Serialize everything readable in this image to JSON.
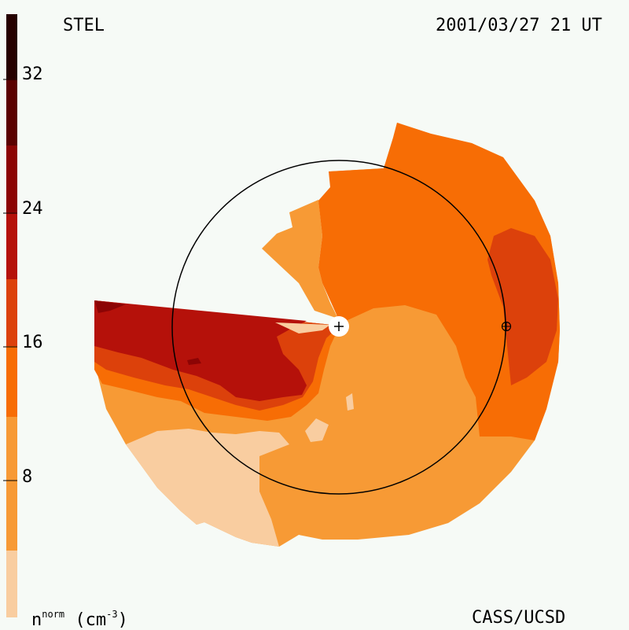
{
  "title": "STEL",
  "timestamp": "2001/03/27 21 UT",
  "credit": "CASS/UCSD",
  "unit": {
    "symbol": "n",
    "superscript": "norm",
    "units_prefix": "(cm",
    "units_exp": "-3",
    "units_suffix": ")"
  },
  "colorbar": {
    "ticks": [
      "32",
      "24",
      "16",
      "8"
    ],
    "colors": [
      "#f9cda0",
      "#f79a35",
      "#f76d05",
      "#dc410b",
      "#b5110a",
      "#8c0404",
      "#5b0000",
      "#260000"
    ]
  },
  "palette": {
    "pale": "#f9cda0",
    "light": "#f79a35",
    "orange": "#f76d05",
    "dark_orange": "#dc410b",
    "red": "#b5110a",
    "dark_red": "#8c0404",
    "background": "#f6faf6"
  },
  "markers": {
    "sun": "+",
    "earth": "earth-symbol"
  }
}
